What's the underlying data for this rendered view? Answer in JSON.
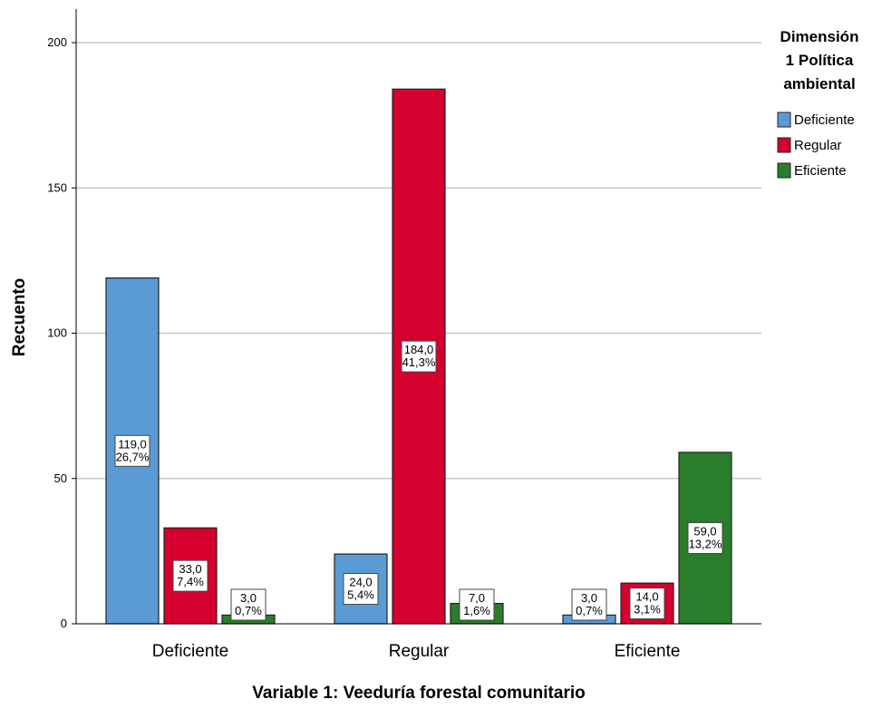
{
  "chart_data": {
    "type": "bar",
    "title": "",
    "xlabel": "Variable 1: Veeduría forestal comunitario",
    "ylabel": "Recuento",
    "ylim": [
      0,
      200
    ],
    "yticks": [
      "0",
      "50",
      "100",
      "150",
      "200"
    ],
    "grid": true,
    "categories": [
      "Deficiente",
      "Regular",
      "Eficiente"
    ],
    "legend": {
      "title": [
        "Dimensión",
        "1 Política",
        "ambiental"
      ],
      "placement": "right"
    },
    "series": [
      {
        "name": "Deficiente",
        "color": "#5b9bd5",
        "values": [
          119,
          24,
          3
        ],
        "labels": [
          [
            "119,0",
            "26,7%"
          ],
          [
            "24,0",
            "5,4%"
          ],
          [
            "3,0",
            "0,7%"
          ]
        ]
      },
      {
        "name": "Regular",
        "color": "#d6002f",
        "values": [
          33,
          184,
          14
        ],
        "labels": [
          [
            "33,0",
            "7,4%"
          ],
          [
            "184,0",
            "41,3%"
          ],
          [
            "14,0",
            "3,1%"
          ]
        ]
      },
      {
        "name": "Eficiente",
        "color": "#2a7d2a",
        "values": [
          3,
          7,
          59
        ],
        "labels": [
          [
            "3,0",
            "0,7%"
          ],
          [
            "7,0",
            "1,6%"
          ],
          [
            "59,0",
            "13,2%"
          ]
        ]
      }
    ]
  }
}
